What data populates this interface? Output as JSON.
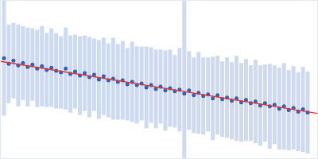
{
  "chart_data": {
    "type": "scatter",
    "tick_labels": false,
    "grid": false,
    "xlim": [
      0,
      400
    ],
    "ylim": [
      0,
      200
    ],
    "series": [
      {
        "type": "scatter",
        "marker": "circle",
        "color": "#2f62c0",
        "x": [
          4,
          10,
          16,
          22,
          28,
          34,
          40,
          46,
          52,
          58,
          64,
          70,
          76,
          82,
          88,
          94,
          100,
          106,
          112,
          118,
          124,
          130,
          136,
          142,
          148,
          154,
          160,
          166,
          172,
          178,
          184,
          190,
          196,
          202,
          208,
          214,
          220,
          226,
          232,
          238,
          244,
          250,
          256,
          262,
          268,
          274,
          280,
          286,
          292,
          298,
          304,
          310,
          316,
          322,
          328,
          334,
          340,
          346,
          352,
          358,
          364,
          370,
          376,
          382,
          388
        ],
        "values": [
          127,
          120,
          124,
          118,
          121,
          116,
          119,
          114,
          117,
          112,
          115,
          111,
          109,
          114,
          107,
          110,
          105,
          108,
          103,
          106,
          100,
          104,
          99,
          101,
          97,
          99,
          94,
          97,
          93,
          95,
          90,
          93,
          88,
          91,
          86,
          89,
          85,
          87,
          82,
          86,
          80,
          83,
          79,
          81,
          76,
          80,
          75,
          77,
          73,
          76,
          71,
          74,
          70,
          72,
          67,
          70,
          66,
          68,
          63,
          66,
          61,
          64,
          59,
          62,
          58
        ],
        "errors": [
          73,
          50,
          48,
          52,
          47,
          50,
          46,
          49,
          51,
          47,
          50,
          48,
          46,
          52,
          49,
          47,
          50,
          48,
          51,
          46,
          50,
          49,
          47,
          52,
          48,
          50,
          46,
          51,
          49,
          47,
          52,
          48,
          50,
          47,
          51,
          49,
          46,
          53,
          118,
          50,
          48,
          52,
          49,
          47,
          53,
          50,
          48,
          51,
          49,
          54,
          50,
          52,
          48,
          53,
          51,
          49,
          54,
          50,
          52,
          55,
          51,
          53,
          50,
          54,
          52
        ]
      },
      {
        "type": "line",
        "line_style": "solid",
        "color": "#e8312a",
        "x": [
          0,
          400
        ],
        "values": [
          123,
          57
        ]
      }
    ]
  }
}
